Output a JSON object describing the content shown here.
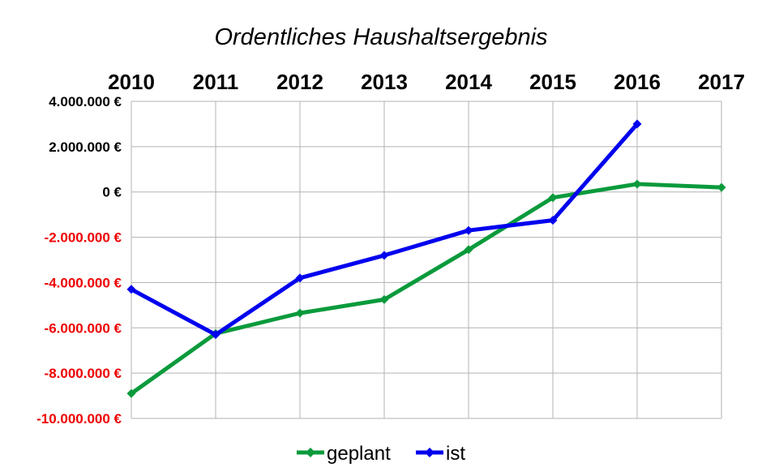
{
  "chart_data": {
    "type": "line",
    "title": "Ordentliches Haushaltsergebnis",
    "categories": [
      "2010",
      "2011",
      "2012",
      "2013",
      "2014",
      "2015",
      "2016",
      "2017"
    ],
    "series": [
      {
        "name": "geplant",
        "color": "#0a9a3c",
        "values": [
          -8900000,
          -6250000,
          -5350000,
          -4750000,
          -2550000,
          -250000,
          350000,
          200000
        ]
      },
      {
        "name": "ist",
        "color": "#0000ee",
        "values": [
          -4300000,
          -6300000,
          -3800000,
          -2800000,
          -1700000,
          -1250000,
          3000000,
          null
        ]
      }
    ],
    "yticks": [
      {
        "value": 4000000,
        "label": "4.000.000 €"
      },
      {
        "value": 2000000,
        "label": "2.000.000 €"
      },
      {
        "value": 0,
        "label": "0 €"
      },
      {
        "value": -2000000,
        "label": "-2.000.000 €"
      },
      {
        "value": -4000000,
        "label": "-4.000.000 €"
      },
      {
        "value": -6000000,
        "label": "-6.000.000 €"
      },
      {
        "value": -8000000,
        "label": "-8.000.000 €"
      },
      {
        "value": -10000000,
        "label": "-10.000.000 €"
      }
    ],
    "ylim": [
      -10000000,
      4000000
    ],
    "x_axis_position": "top",
    "negative_tick_color": "#ee0000",
    "positive_tick_color": "#000000",
    "grid": true,
    "legend_position": "bottom"
  }
}
